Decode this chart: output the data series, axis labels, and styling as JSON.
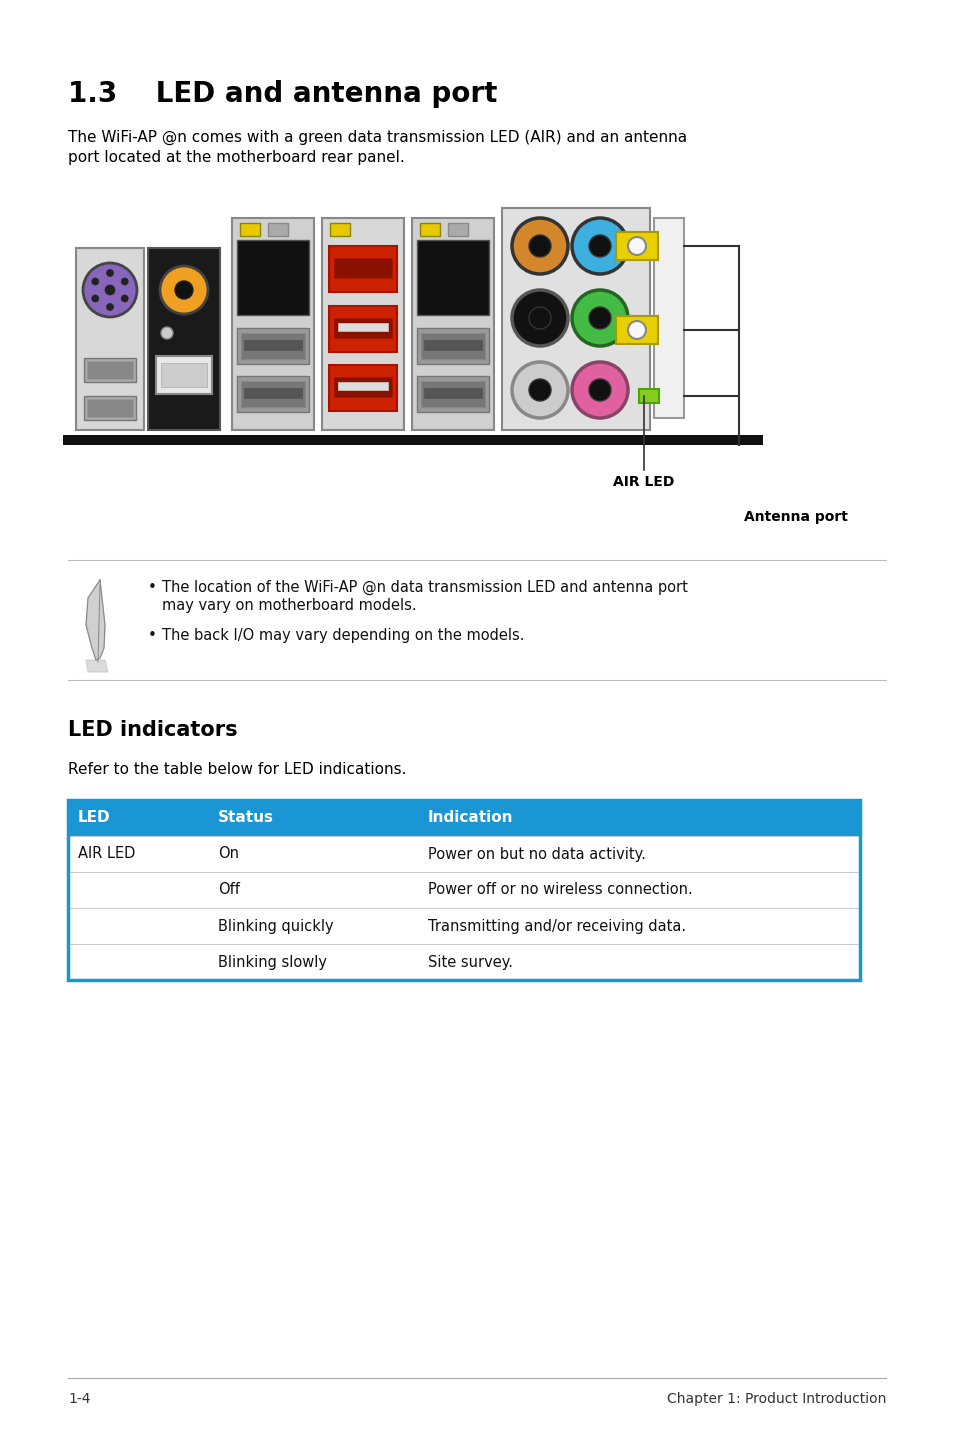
{
  "title": "1.3    LED and antenna port",
  "intro_text_1": "The WiFi-AP @n comes with a green data transmission LED (AIR) and an antenna",
  "intro_text_2": "port located at the motherboard rear panel.",
  "note_text_1": "The location of the WiFi-AP @n data transmission LED and antenna port",
  "note_text_1b": "may vary on motherboard models.",
  "note_text_2": "The back I/O may vary depending on the models.",
  "led_section_title": "LED indicators",
  "led_section_intro": "Refer to the table below for LED indications.",
  "table_header": [
    "LED",
    "Status",
    "Indication"
  ],
  "table_rows": [
    [
      "AIR LED",
      "On",
      "Power on but no data activity."
    ],
    [
      "",
      "Off",
      "Power off or no wireless connection."
    ],
    [
      "",
      "Blinking quickly",
      "Transmitting and/or receiving data."
    ],
    [
      "",
      "Blinking slowly",
      "Site survey."
    ]
  ],
  "header_bg": "#1a96d4",
  "header_text_color": "#ffffff",
  "footer_left": "1-4",
  "footer_right": "Chapter 1: Product Introduction",
  "border_color": "#1a96d4",
  "bg_color": "#ffffff",
  "label_air_led": "AIR LED",
  "label_antenna": "Antenna port"
}
